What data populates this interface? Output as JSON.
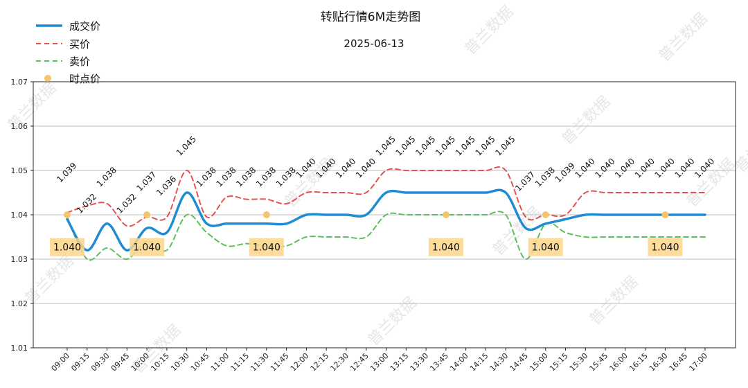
{
  "chart_data": {
    "type": "line",
    "title": "转贴行情6M走势图",
    "subtitle": "2025-06-13",
    "watermark": "普兰数据",
    "ylim": [
      1.01,
      1.07
    ],
    "yticks": [
      "1.01",
      "1.02",
      "1.03",
      "1.04",
      "1.05",
      "1.06",
      "1.07"
    ],
    "grid": "horizontal",
    "legend_position": "top-left",
    "x": [
      "09:00",
      "09:15",
      "09:30",
      "09:45",
      "10:00",
      "10:15",
      "10:30",
      "10:45",
      "11:00",
      "11:15",
      "11:30",
      "11:45",
      "12:00",
      "12:15",
      "12:30",
      "12:45",
      "13:00",
      "13:15",
      "13:30",
      "13:45",
      "14:00",
      "14:15",
      "14:30",
      "14:45",
      "15:00",
      "15:15",
      "15:30",
      "15:45",
      "16:00",
      "16:15",
      "16:30",
      "16:45",
      "17:00"
    ],
    "series": [
      {
        "name": "成交价",
        "color": "#1f8bd2",
        "style": "solid",
        "values": [
          1.039,
          1.032,
          1.038,
          1.032,
          1.037,
          1.036,
          1.045,
          1.038,
          1.038,
          1.038,
          1.038,
          1.038,
          1.04,
          1.04,
          1.04,
          1.04,
          1.045,
          1.045,
          1.045,
          1.045,
          1.045,
          1.045,
          1.045,
          1.037,
          1.038,
          1.039,
          1.04,
          1.04,
          1.04,
          1.04,
          1.04,
          1.04,
          1.04
        ]
      },
      {
        "name": "买价",
        "color": "#e8504f",
        "style": "dashed",
        "values": [
          1.0405,
          1.042,
          1.0425,
          1.0375,
          1.0395,
          1.0395,
          1.05,
          1.0395,
          1.044,
          1.0435,
          1.0435,
          1.0425,
          1.045,
          1.045,
          1.045,
          1.045,
          1.05,
          1.05,
          1.05,
          1.05,
          1.05,
          1.05,
          1.05,
          1.0395,
          1.04,
          1.04,
          1.045,
          1.045,
          1.045,
          1.045,
          1.045,
          1.045,
          1.045
        ]
      },
      {
        "name": "卖价",
        "color": "#5cbf5c",
        "style": "dashed",
        "values": [
          1.0395,
          1.03,
          1.0325,
          1.03,
          1.034,
          1.032,
          1.04,
          1.036,
          1.033,
          1.0335,
          1.033,
          1.033,
          1.035,
          1.035,
          1.035,
          1.035,
          1.04,
          1.04,
          1.04,
          1.04,
          1.04,
          1.04,
          1.04,
          1.03,
          1.038,
          1.036,
          1.035,
          1.035,
          1.035,
          1.035,
          1.035,
          1.035,
          1.035
        ]
      }
    ],
    "data_labels": [
      "1.039",
      "1.032",
      "1.038",
      "1.032",
      "1.037",
      "1.036",
      "1.045",
      "1.038",
      "1.038",
      "1.038",
      "1.038",
      "1.038",
      "1.040",
      "1.040",
      "1.040",
      "1.040",
      "1.045",
      "1.045",
      "1.045",
      "1.045",
      "1.045",
      "1.045",
      "1.045",
      "1.037",
      "1.038",
      "1.039",
      "1.040",
      "1.040",
      "1.040",
      "1.040",
      "1.040",
      "1.040",
      "1.040"
    ],
    "time_points": {
      "name": "时点价",
      "color": "#f5c46b",
      "points": [
        {
          "x": "09:00",
          "y": 1.04,
          "label": "1.040"
        },
        {
          "x": "10:00",
          "y": 1.04,
          "label": "1.040"
        },
        {
          "x": "11:30",
          "y": 1.04,
          "label": "1.040"
        },
        {
          "x": "13:45",
          "y": 1.04,
          "label": "1.040"
        },
        {
          "x": "15:00",
          "y": 1.04,
          "label": "1.040"
        },
        {
          "x": "16:30",
          "y": 1.04,
          "label": "1.040"
        }
      ]
    }
  }
}
